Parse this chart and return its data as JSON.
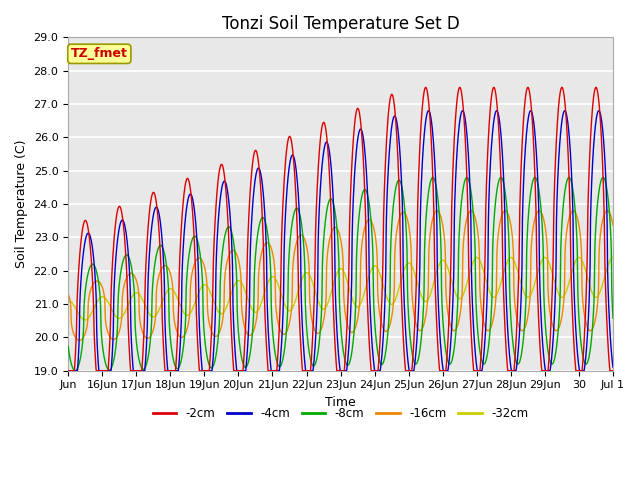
{
  "title": "Tonzi Soil Temperature Set D",
  "xlabel": "Time",
  "ylabel": "Soil Temperature (C)",
  "ylim": [
    19.0,
    29.0
  ],
  "yticks": [
    19.0,
    20.0,
    21.0,
    22.0,
    23.0,
    24.0,
    25.0,
    26.0,
    27.0,
    28.0,
    29.0
  ],
  "series_colors": [
    "#dd0000",
    "#0000cc",
    "#00aa00",
    "#ee8800",
    "#cccc00"
  ],
  "series_labels": [
    "-2cm",
    "-4cm",
    "-8cm",
    "-16cm",
    "-32cm"
  ],
  "legend_label": "TZ_fmet",
  "legend_box_color": "#ffff99",
  "legend_box_edge": "#999900",
  "background_color": "#e8e8e8",
  "grid_color": "#ffffff",
  "title_fontsize": 12,
  "label_fontsize": 9,
  "tick_fontsize": 8,
  "x_tick_labels": [
    "Jun",
    "16Jun",
    "17Jun",
    "18Jun",
    "19Jun",
    "20Jun",
    "21Jun",
    "22Jun",
    "23Jun",
    "24Jun",
    "25Jun",
    "26Jun",
    "27Jun",
    "28Jun",
    "29Jun",
    "30",
    "Jul 1"
  ]
}
